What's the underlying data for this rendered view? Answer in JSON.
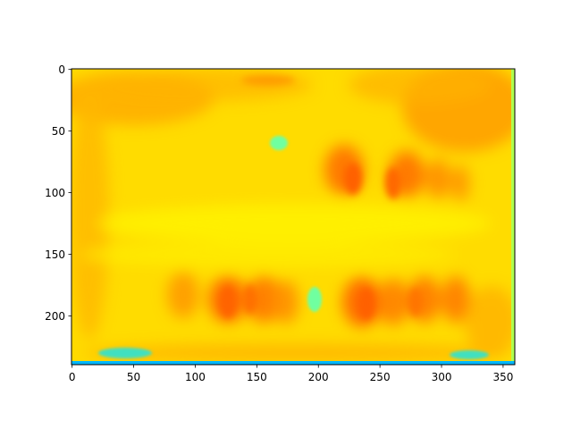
{
  "chart_data": {
    "type": "heatmap",
    "colormap": "jet",
    "title": "",
    "xlabel": "",
    "ylabel": "",
    "image_width": 360,
    "image_height": 240,
    "xlim": [
      0,
      360
    ],
    "ylim": [
      240,
      0
    ],
    "y_axis_inverted": true,
    "grid": false,
    "legend": "none",
    "xticks": [
      0,
      50,
      100,
      150,
      200,
      250,
      300,
      350
    ],
    "xtick_labels": [
      "0",
      "50",
      "100",
      "150",
      "200",
      "250",
      "300",
      "350"
    ],
    "yticks": [
      0,
      50,
      100,
      150,
      200
    ],
    "ytick_labels": [
      "0",
      "50",
      "100",
      "150",
      "200"
    ],
    "dominant_colors": {
      "background": "#ffe000",
      "warm_regions": "#ff9a00",
      "hot_regions": "#ff6a00",
      "bright_band": "#fff200",
      "cool_speckle": "#40ffc0",
      "cold_speckle": "#00b0ff",
      "edge_green": "#a0ff60"
    }
  }
}
